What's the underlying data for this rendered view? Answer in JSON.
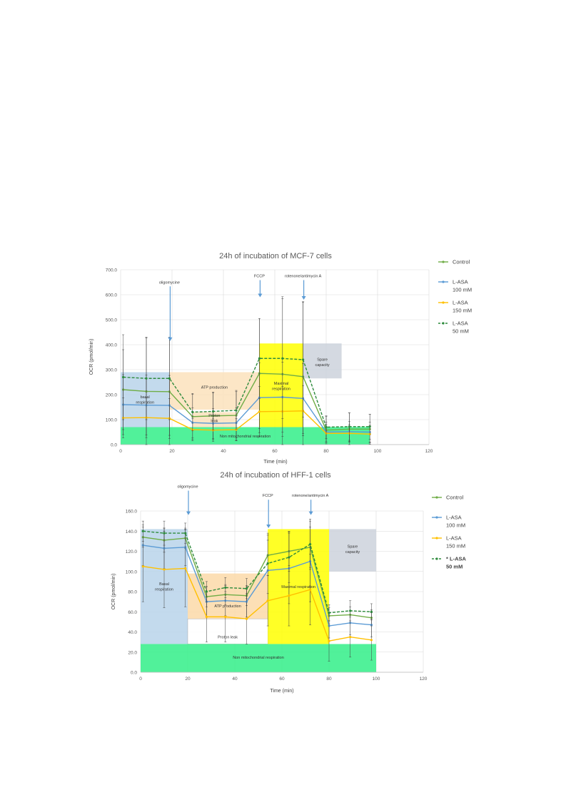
{
  "chart_data": [
    {
      "type": "line",
      "title": "24h of incubation of MCF-7 cells",
      "xlabel": "Time (min)",
      "ylabel": "OCR (pmol/min)",
      "xlim": [
        0,
        120
      ],
      "ylim": [
        0,
        700
      ],
      "xticks": [
        0,
        20,
        40,
        60,
        80,
        100,
        120
      ],
      "xtick_labels": [
        "0",
        "20",
        "40",
        "60",
        "80",
        "100",
        "120"
      ],
      "yticks": [
        0,
        100,
        200,
        300,
        400,
        500,
        600,
        700
      ],
      "ytick_labels": [
        "0.0",
        "100.0",
        "200.0",
        "300.0",
        "400.0",
        "500.0",
        "600.0",
        "700.0"
      ],
      "grid": true,
      "legend_position": "right",
      "x": [
        1,
        10,
        19,
        28,
        36,
        45,
        54,
        63,
        71,
        80,
        89,
        97
      ],
      "series": [
        {
          "name": "Control",
          "color": "#70ad47",
          "dashed": false,
          "values": [
            220,
            213,
            212,
            112,
            115,
            117,
            285,
            282,
            272,
            58,
            62,
            62
          ],
          "err": [
            160,
            215,
            215,
            90,
            95,
            100,
            220,
            310,
            300,
            55,
            65,
            60
          ]
        },
        {
          "name": "L-ASA 100 mM",
          "color": "#5b9bd5",
          "dashed": false,
          "values": [
            160,
            158,
            157,
            88,
            85,
            87,
            188,
            190,
            185,
            50,
            52,
            50
          ],
          "err": [
            120,
            120,
            120,
            60,
            60,
            60,
            140,
            140,
            140,
            40,
            40,
            40
          ]
        },
        {
          "name": "L-ASA 150 mM",
          "color": "#ffc000",
          "dashed": false,
          "values": [
            107,
            108,
            105,
            60,
            58,
            60,
            132,
            133,
            135,
            45,
            45,
            42
          ],
          "err": [
            80,
            80,
            80,
            45,
            45,
            45,
            100,
            100,
            100,
            35,
            35,
            35
          ]
        },
        {
          "name": "L-ASA 50 mM",
          "color": "#2e8b3d",
          "dashed": true,
          "values": [
            270,
            265,
            265,
            130,
            133,
            137,
            345,
            345,
            340,
            70,
            72,
            72
          ],
          "err": [
            170,
            165,
            165,
            75,
            75,
            75,
            160,
            240,
            230,
            45,
            55,
            50
          ]
        }
      ],
      "regions": [
        {
          "label": "basal respiration",
          "x0": 0,
          "x1": 19,
          "y0": 70,
          "y1": 290,
          "color": "#b8d4ea",
          "text_y": 180
        },
        {
          "label": "ATP production",
          "x0": 19,
          "x1": 54,
          "y0": 140,
          "y1": 290,
          "color": "#fbe2bc",
          "text_y": 230
        },
        {
          "label": "Proton leak",
          "x0": 28,
          "x1": 45,
          "y0": 70,
          "y1": 130,
          "color": "#fbe2bc",
          "text_y": 106
        },
        {
          "label": "Maximal respiration",
          "x0": 54,
          "x1": 71,
          "y0": 70,
          "y1": 405,
          "color": "#ffff00",
          "text_y": 235
        },
        {
          "label": "Spare capacity",
          "x0": 71,
          "x1": 86,
          "y0": 265,
          "y1": 405,
          "color": "#cdd2dc",
          "text_y": 330
        },
        {
          "label": "Non mitochondrial respiration",
          "x0": 0,
          "x1": 97,
          "y0": 0,
          "y1": 70,
          "color": "#33ee88",
          "text_y": 35
        }
      ],
      "annotations": [
        {
          "label": "oligomycine",
          "x": 19,
          "y_text": 645,
          "y_arrow": 415
        },
        {
          "label": "FCCP",
          "x": 54,
          "y_text": 670,
          "y_arrow": 590
        },
        {
          "label": "rotenone/antimycin A",
          "x": 71,
          "y_text": 670,
          "y_arrow": 580
        }
      ]
    },
    {
      "type": "line",
      "title": "24h of incubation of HFF-1 cells",
      "xlabel": "Time (min)",
      "ylabel": "OCR (pmol/min)",
      "xlim": [
        0,
        120
      ],
      "ylim": [
        0,
        160
      ],
      "xticks": [
        0,
        20,
        40,
        60,
        80,
        100,
        120
      ],
      "xtick_labels": [
        "0",
        "20",
        "40",
        "60",
        "80",
        "100",
        "120"
      ],
      "yticks": [
        0,
        20,
        40,
        60,
        80,
        100,
        120,
        140,
        160
      ],
      "ytick_labels": [
        "0.0",
        "20.0",
        "40.0",
        "60.0",
        "80.0",
        "100.0",
        "120.0",
        "140.0",
        "160.0"
      ],
      "grid": true,
      "legend_position": "right",
      "x": [
        1,
        10,
        19,
        28,
        36,
        45,
        54,
        63,
        72,
        80,
        89,
        98
      ],
      "series": [
        {
          "name": "Control",
          "color": "#70ad47",
          "dashed": false,
          "values": [
            134,
            131,
            133,
            75,
            77,
            76,
            116,
            120,
            124,
            56,
            57,
            54
          ],
          "err": [
            10,
            12,
            10,
            10,
            10,
            10,
            20,
            20,
            20,
            8,
            8,
            8
          ]
        },
        {
          "name": "L-ASA 100 mM",
          "color": "#5b9bd5",
          "dashed": false,
          "values": [
            126,
            123,
            124,
            70,
            71,
            70,
            101,
            103,
            110,
            46,
            49,
            47
          ],
          "err": [
            20,
            20,
            18,
            15,
            15,
            15,
            30,
            35,
            40,
            12,
            12,
            12
          ]
        },
        {
          "name": "L-ASA 150 mM",
          "color": "#ffc000",
          "dashed": false,
          "values": [
            105,
            102,
            103,
            55,
            55,
            53,
            71,
            76,
            82,
            31,
            35,
            32
          ],
          "err": [
            35,
            38,
            38,
            25,
            25,
            25,
            25,
            30,
            35,
            20,
            20,
            20
          ]
        },
        {
          "name": "* L-ASA 50 mM",
          "color": "#2e8b3d",
          "dashed": true,
          "bold": true,
          "values": [
            140,
            138,
            138,
            80,
            84,
            83,
            108,
            114,
            127,
            59,
            61,
            60
          ],
          "err": [
            10,
            12,
            10,
            10,
            10,
            10,
            30,
            25,
            25,
            8,
            10,
            8
          ]
        }
      ],
      "regions": [
        {
          "label": "Basal respiration",
          "x0": 0,
          "x1": 20,
          "y0": 28,
          "y1": 142,
          "color": "#b8d4ea",
          "text_y": 85
        },
        {
          "label": "ATP production",
          "x0": 20,
          "x1": 54,
          "y0": 53,
          "y1": 98,
          "color": "#fbd9a8",
          "text_y": 66
        },
        {
          "label": "Proton leak",
          "x0": 20,
          "x1": 54,
          "y0": 28,
          "y1": 53,
          "color": "#ffffff",
          "text_y": 35
        },
        {
          "label": "Maximal respiration",
          "x0": 54,
          "x1": 80,
          "y0": 28,
          "y1": 142,
          "color": "#ffff00",
          "text_y": 85
        },
        {
          "label": "Spare capacity",
          "x0": 80,
          "x1": 100,
          "y0": 100,
          "y1": 142,
          "color": "#cdd2dc",
          "text_y": 122
        },
        {
          "label": "Non mitochondrial respiration",
          "x0": 0,
          "x1": 100,
          "y0": 0,
          "y1": 28,
          "color": "#33ee88",
          "text_y": 15
        }
      ],
      "annotations": [
        {
          "label": "oligomycine",
          "x": 20,
          "y_text": 183,
          "y_arrow": 156
        },
        {
          "label": "FCCP",
          "x": 54,
          "y_text": 174,
          "y_arrow": 143
        },
        {
          "label": "rotenone/antimycin A",
          "x": 72,
          "y_text": 174,
          "y_arrow": 156
        }
      ]
    }
  ]
}
